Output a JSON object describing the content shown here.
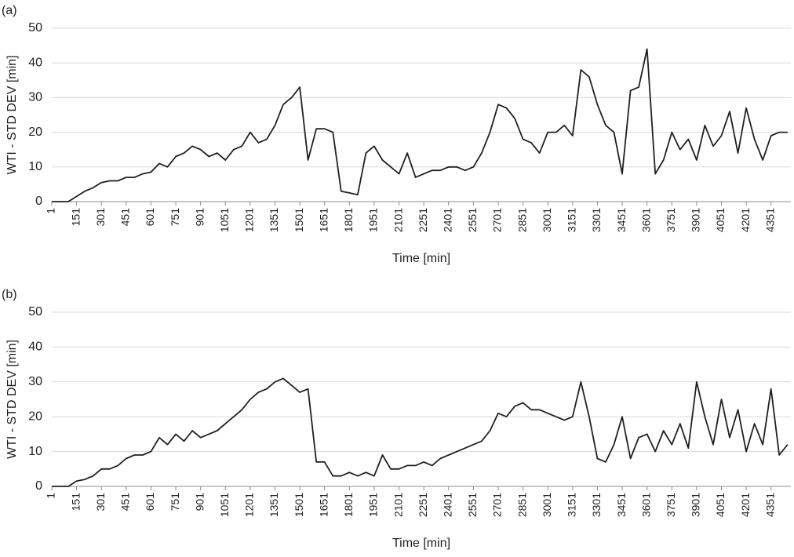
{
  "chart_data": [
    {
      "type": "line",
      "panel": "(a)",
      "y_label": "WTI - STD DEV [min]",
      "x_label": "Time [min]",
      "color": "#231f20",
      "grid": true,
      "xlim": [
        1,
        4471
      ],
      "ylim": [
        0,
        50
      ],
      "xticks": [
        1,
        151,
        301,
        451,
        601,
        751,
        901,
        1051,
        1201,
        1351,
        1501,
        1651,
        1801,
        1951,
        2101,
        2251,
        2401,
        2551,
        2701,
        2851,
        3001,
        3151,
        3301,
        3451,
        3601,
        3751,
        3901,
        4051,
        4201,
        4351
      ],
      "yticks": [
        0,
        10,
        20,
        30,
        40,
        50
      ],
      "x": [
        1,
        51,
        101,
        151,
        201,
        251,
        301,
        351,
        401,
        451,
        501,
        551,
        601,
        651,
        701,
        751,
        801,
        851,
        901,
        951,
        1001,
        1051,
        1101,
        1151,
        1201,
        1251,
        1301,
        1351,
        1401,
        1451,
        1501,
        1551,
        1601,
        1651,
        1701,
        1751,
        1801,
        1851,
        1901,
        1951,
        2001,
        2051,
        2101,
        2151,
        2201,
        2251,
        2301,
        2351,
        2401,
        2451,
        2501,
        2551,
        2601,
        2651,
        2701,
        2751,
        2801,
        2851,
        2901,
        2951,
        3001,
        3051,
        3101,
        3151,
        3201,
        3251,
        3301,
        3351,
        3401,
        3451,
        3501,
        3551,
        3601,
        3651,
        3701,
        3751,
        3801,
        3851,
        3901,
        3951,
        4001,
        4051,
        4101,
        4151,
        4201,
        4251,
        4301,
        4351,
        4401,
        4451
      ],
      "values": [
        0,
        0,
        0,
        1.5,
        3,
        4,
        5.5,
        6,
        6,
        7,
        7,
        8,
        8.5,
        11,
        10,
        13,
        14,
        16,
        15,
        13,
        14,
        12,
        15,
        16,
        20,
        17,
        18,
        22,
        28,
        30,
        33,
        12,
        21,
        21,
        20,
        3,
        2.5,
        2,
        14,
        16,
        12,
        10,
        8,
        14,
        7,
        8,
        9,
        9,
        10,
        10,
        9,
        10,
        14,
        20,
        28,
        27,
        24,
        18,
        17,
        14,
        20,
        20,
        22,
        19,
        38,
        36,
        28,
        22,
        20,
        8,
        32,
        33,
        44,
        8,
        12,
        20,
        15,
        18,
        12,
        22,
        16,
        19,
        26,
        14,
        27,
        18,
        12,
        19,
        20,
        20
      ]
    },
    {
      "type": "line",
      "panel": "(b)",
      "y_label": "WTI - STD DEV [min]",
      "x_label": "Time [min]",
      "color": "#231f20",
      "grid": true,
      "xlim": [
        1,
        4471
      ],
      "ylim": [
        0,
        50
      ],
      "xticks": [
        1,
        151,
        301,
        451,
        601,
        751,
        901,
        1051,
        1201,
        1351,
        1501,
        1651,
        1801,
        1951,
        2101,
        2251,
        2401,
        2551,
        2701,
        2851,
        3001,
        3151,
        3301,
        3451,
        3601,
        3751,
        3901,
        4051,
        4201,
        4351
      ],
      "yticks": [
        0,
        10,
        20,
        30,
        40,
        50
      ],
      "x": [
        1,
        51,
        101,
        151,
        201,
        251,
        301,
        351,
        401,
        451,
        501,
        551,
        601,
        651,
        701,
        751,
        801,
        851,
        901,
        951,
        1001,
        1051,
        1101,
        1151,
        1201,
        1251,
        1301,
        1351,
        1401,
        1451,
        1501,
        1551,
        1601,
        1651,
        1701,
        1751,
        1801,
        1851,
        1901,
        1951,
        2001,
        2051,
        2101,
        2151,
        2201,
        2251,
        2301,
        2351,
        2401,
        2451,
        2501,
        2551,
        2601,
        2651,
        2701,
        2751,
        2801,
        2851,
        2901,
        2951,
        3001,
        3051,
        3101,
        3151,
        3201,
        3251,
        3301,
        3351,
        3401,
        3451,
        3501,
        3551,
        3601,
        3651,
        3701,
        3751,
        3801,
        3851,
        3901,
        3951,
        4001,
        4051,
        4101,
        4151,
        4201,
        4251,
        4301,
        4351,
        4401,
        4451
      ],
      "values": [
        0,
        0,
        0,
        1.5,
        2,
        3,
        5,
        5,
        6,
        8,
        9,
        9,
        10,
        14,
        12,
        15,
        13,
        16,
        14,
        15,
        16,
        18,
        20,
        22,
        25,
        27,
        28,
        30,
        31,
        29,
        27,
        28,
        7,
        7,
        3,
        3,
        4,
        3,
        4,
        3,
        9,
        5,
        5,
        6,
        6,
        7,
        6,
        8,
        9,
        10,
        11,
        12,
        13,
        16,
        21,
        20,
        23,
        24,
        22,
        22,
        21,
        20,
        19,
        20,
        30,
        20,
        8,
        7,
        12,
        20,
        8,
        14,
        15,
        10,
        16,
        12,
        18,
        11,
        30,
        20,
        12,
        25,
        14,
        22,
        10,
        18,
        12,
        28,
        9,
        12
      ]
    }
  ]
}
